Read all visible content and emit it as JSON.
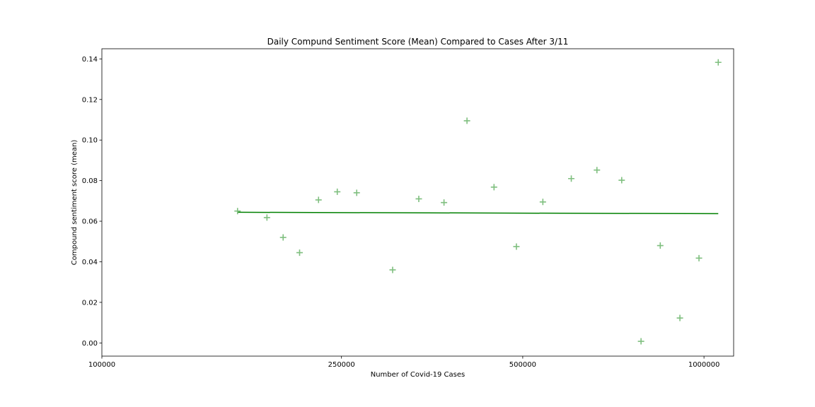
{
  "chart_data": {
    "type": "scatter",
    "title": "Daily Compund Sentiment Score (Mean) Compared to Cases After 3/11",
    "xlabel": "Number of Covid-19 Cases",
    "ylabel": "Compound sentiment score (mean)",
    "x_scale": "log",
    "xlim": [
      100000,
      1120000
    ],
    "ylim": [
      -0.0065,
      0.145
    ],
    "x_ticks": [
      {
        "value": 100000,
        "label": "100000"
      },
      {
        "value": 250000,
        "label": "250000"
      },
      {
        "value": 500000,
        "label": "500000"
      },
      {
        "value": 1000000,
        "label": "1000000"
      }
    ],
    "y_ticks": [
      {
        "value": 0.0,
        "label": "0.00"
      },
      {
        "value": 0.02,
        "label": "0.02"
      },
      {
        "value": 0.04,
        "label": "0.04"
      },
      {
        "value": 0.06,
        "label": "0.06"
      },
      {
        "value": 0.08,
        "label": "0.08"
      },
      {
        "value": 0.1,
        "label": "0.10"
      },
      {
        "value": 0.12,
        "label": "0.12"
      },
      {
        "value": 0.14,
        "label": "0.14"
      }
    ],
    "grid": false,
    "marker": "+",
    "colors": {
      "points": "#7fbf7f",
      "trend": "#008000"
    },
    "points": [
      {
        "x": 168000,
        "y": 0.065
      },
      {
        "x": 188000,
        "y": 0.0618
      },
      {
        "x": 200000,
        "y": 0.052
      },
      {
        "x": 213000,
        "y": 0.0445
      },
      {
        "x": 229000,
        "y": 0.0705
      },
      {
        "x": 246000,
        "y": 0.0745
      },
      {
        "x": 265000,
        "y": 0.074
      },
      {
        "x": 304000,
        "y": 0.036
      },
      {
        "x": 336000,
        "y": 0.071
      },
      {
        "x": 370000,
        "y": 0.0692
      },
      {
        "x": 404000,
        "y": 0.1095
      },
      {
        "x": 448000,
        "y": 0.0768
      },
      {
        "x": 488000,
        "y": 0.0475
      },
      {
        "x": 540000,
        "y": 0.0695
      },
      {
        "x": 602000,
        "y": 0.081
      },
      {
        "x": 664000,
        "y": 0.0852
      },
      {
        "x": 730000,
        "y": 0.0802
      },
      {
        "x": 786000,
        "y": 0.0008
      },
      {
        "x": 846000,
        "y": 0.048
      },
      {
        "x": 912000,
        "y": 0.0123
      },
      {
        "x": 981000,
        "y": 0.0418
      },
      {
        "x": 1056000,
        "y": 0.1383
      }
    ],
    "trend_line": {
      "x": [
        168000,
        1056000
      ],
      "y": [
        0.0644,
        0.0637
      ]
    }
  }
}
